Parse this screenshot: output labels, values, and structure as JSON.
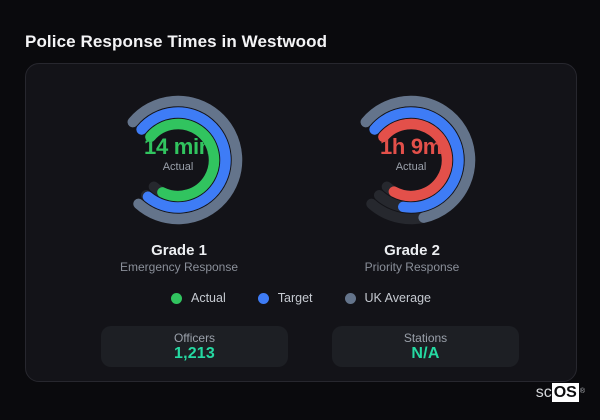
{
  "page": {
    "title": "Police Response Times in Westwood",
    "background": "#0a0a0d",
    "card_background": "#131318"
  },
  "colors": {
    "actual_grade1": "#31c45f",
    "actual_grade2": "#e3504a",
    "target": "#3e7cf6",
    "uk_average": "#64748b",
    "ring_track": "#26282e",
    "stat_value": "#25d9a2"
  },
  "legend": [
    {
      "label": "Actual",
      "color": "#31c45f"
    },
    {
      "label": "Target",
      "color": "#3e7cf6"
    },
    {
      "label": "UK Average",
      "color": "#64748b"
    }
  ],
  "stats": [
    {
      "label": "Officers",
      "value": "1,213"
    },
    {
      "label": "Stations",
      "value": "N/A"
    }
  ],
  "branding": {
    "prefix": "sc",
    "suffix": "OS",
    "registered": "®"
  },
  "chart_data": [
    {
      "type": "radial-bar-gauge",
      "title": "Grade 1",
      "subtitle": "Emergency Response",
      "center_value": "14 min",
      "center_value_color": "#31c45f",
      "center_label": "Actual",
      "start_angle_deg": -50,
      "sweep_deg": 272,
      "legend_position": "bottom",
      "series": [
        {
          "name": "UK Average",
          "ring": "outer",
          "fill_fraction": 1.0,
          "color": "#64748b"
        },
        {
          "name": "Target",
          "ring": "middle",
          "fill_fraction": 0.99,
          "color": "#3e7cf6"
        },
        {
          "name": "Actual",
          "ring": "inner",
          "fill_fraction": 0.94,
          "color": "#31c45f",
          "displayed_value": "14 min"
        }
      ]
    },
    {
      "type": "radial-bar-gauge",
      "title": "Grade 2",
      "subtitle": "Priority Response",
      "center_value": "1h 9m",
      "center_value_color": "#e3504a",
      "center_label": "Actual",
      "start_angle_deg": -50,
      "sweep_deg": 272,
      "legend_position": "bottom",
      "series": [
        {
          "name": "UK Average",
          "ring": "outer",
          "fill_fraction": 0.8,
          "color": "#64748b"
        },
        {
          "name": "Target",
          "ring": "middle",
          "fill_fraction": 0.88,
          "color": "#3e7cf6"
        },
        {
          "name": "Actual",
          "ring": "inner",
          "fill_fraction": 0.95,
          "color": "#e3504a",
          "displayed_value": "1h 9m"
        }
      ]
    }
  ]
}
